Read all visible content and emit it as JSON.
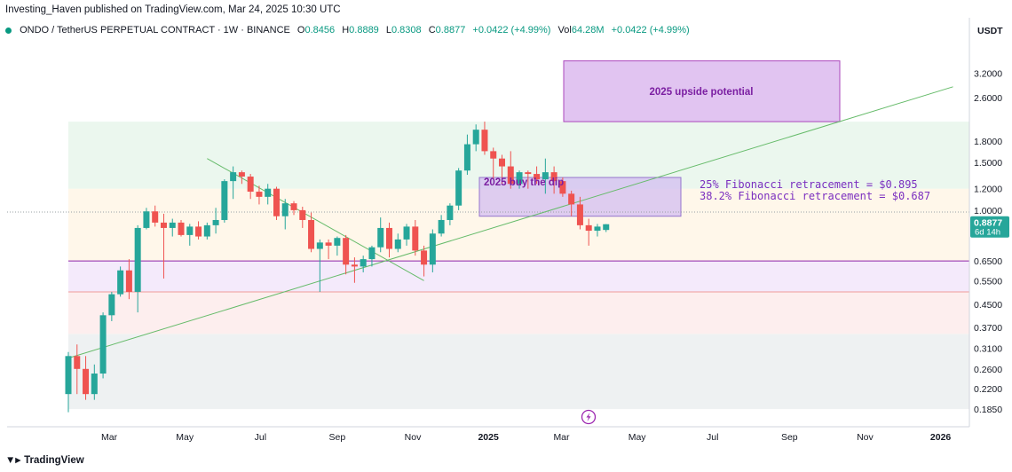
{
  "header": {
    "publisher": "Investing_Haven published on TradingView.com, Mar 24, 2025 10:30 UTC",
    "symbol": "ONDO / TetherUS PERPETUAL CONTRACT · 1W · BINANCE",
    "open_label": "O",
    "open": "0.8456",
    "high_label": "H",
    "high": "0.8889",
    "low_label": "L",
    "low": "0.8308",
    "close_label": "C",
    "close": "0.8877",
    "change": "+0.0422 (+4.99%)",
    "vol_label": "Vol",
    "vol": "64.28M",
    "vol_change": "+0.0422 (+4.99%)"
  },
  "footer": {
    "brand": "TradingView"
  },
  "colors": {
    "up": "#26a69a",
    "down": "#ef5350",
    "accent": "#7b2fbf",
    "trend": "#66bb6a"
  },
  "chart_data": {
    "type": "candlestick",
    "scale": "log",
    "y_axis_unit": "USDT",
    "y_ticks": [
      3.2,
      2.6,
      1.8,
      1.5,
      1.2,
      1.0,
      0.65,
      0.55,
      0.45,
      0.37,
      0.31,
      0.26,
      0.22,
      0.185
    ],
    "y_tick_labels": [
      "3.2000",
      "2.6000",
      "1.8000",
      "1.5000",
      "1.2000",
      "1.0000",
      "0.6500",
      "0.5500",
      "0.4500",
      "0.3700",
      "0.3100",
      "0.2600",
      "0.2200",
      "0.1850"
    ],
    "x_tick_labels": [
      "Mar",
      "May",
      "Jul",
      "Sep",
      "Nov",
      "2025",
      "Mar",
      "May",
      "Jul",
      "Sep",
      "Nov",
      "2026"
    ],
    "current_price": "0.8877",
    "countdown": "6d 14h",
    "candles": [
      [
        0.21,
        0.3,
        0.18,
        0.29
      ],
      [
        0.29,
        0.32,
        0.21,
        0.26
      ],
      [
        0.26,
        0.29,
        0.2,
        0.21
      ],
      [
        0.21,
        0.27,
        0.2,
        0.25
      ],
      [
        0.25,
        0.42,
        0.24,
        0.41
      ],
      [
        0.41,
        0.5,
        0.39,
        0.49
      ],
      [
        0.49,
        0.62,
        0.48,
        0.6
      ],
      [
        0.6,
        0.66,
        0.47,
        0.5
      ],
      [
        0.5,
        0.88,
        0.42,
        0.86
      ],
      [
        0.86,
        1.02,
        0.85,
        0.99
      ],
      [
        0.99,
        1.04,
        0.87,
        0.9
      ],
      [
        0.9,
        0.97,
        0.56,
        0.86
      ],
      [
        0.86,
        0.93,
        0.8,
        0.9
      ],
      [
        0.9,
        0.92,
        0.8,
        0.81
      ],
      [
        0.81,
        0.89,
        0.74,
        0.87
      ],
      [
        0.87,
        0.91,
        0.78,
        0.8
      ],
      [
        0.8,
        0.9,
        0.78,
        0.88
      ],
      [
        0.88,
        1.02,
        0.82,
        0.92
      ],
      [
        0.92,
        1.3,
        0.9,
        1.28
      ],
      [
        1.28,
        1.45,
        1.1,
        1.38
      ],
      [
        1.38,
        1.4,
        1.25,
        1.33
      ],
      [
        1.33,
        1.36,
        1.1,
        1.17
      ],
      [
        1.17,
        1.23,
        1.05,
        1.12
      ],
      [
        1.12,
        1.25,
        1.05,
        1.2
      ],
      [
        1.2,
        1.22,
        0.92,
        0.95
      ],
      [
        0.95,
        1.1,
        0.85,
        1.06
      ],
      [
        1.06,
        1.08,
        0.96,
        1.0
      ],
      [
        1.0,
        1.03,
        0.86,
        0.92
      ],
      [
        0.92,
        0.98,
        0.7,
        0.72
      ],
      [
        0.72,
        0.78,
        0.5,
        0.76
      ],
      [
        0.76,
        0.78,
        0.66,
        0.74
      ],
      [
        0.74,
        0.8,
        0.68,
        0.79
      ],
      [
        0.79,
        0.81,
        0.58,
        0.63
      ],
      [
        0.63,
        0.67,
        0.54,
        0.62
      ],
      [
        0.62,
        0.68,
        0.59,
        0.66
      ],
      [
        0.66,
        0.74,
        0.62,
        0.73
      ],
      [
        0.73,
        0.94,
        0.7,
        0.86
      ],
      [
        0.86,
        0.9,
        0.67,
        0.72
      ],
      [
        0.72,
        0.82,
        0.7,
        0.78
      ],
      [
        0.78,
        0.89,
        0.74,
        0.87
      ],
      [
        0.87,
        0.92,
        0.68,
        0.71
      ],
      [
        0.71,
        0.74,
        0.57,
        0.63
      ],
      [
        0.63,
        0.85,
        0.59,
        0.82
      ],
      [
        0.82,
        0.96,
        0.8,
        0.92
      ],
      [
        0.92,
        1.06,
        0.88,
        1.04
      ],
      [
        1.04,
        1.43,
        1.0,
        1.4
      ],
      [
        1.4,
        1.9,
        1.35,
        1.75
      ],
      [
        1.75,
        2.07,
        1.65,
        1.98
      ],
      [
        1.98,
        2.12,
        1.6,
        1.65
      ],
      [
        1.65,
        1.7,
        1.3,
        1.55
      ],
      [
        1.55,
        1.6,
        1.25,
        1.45
      ],
      [
        1.45,
        1.65,
        1.2,
        1.25
      ],
      [
        1.25,
        1.4,
        1.2,
        1.38
      ],
      [
        1.38,
        1.4,
        1.2,
        1.36
      ],
      [
        1.36,
        1.45,
        1.25,
        1.3
      ],
      [
        1.3,
        1.55,
        1.15,
        1.38
      ],
      [
        1.38,
        1.45,
        1.15,
        1.28
      ],
      [
        1.28,
        1.32,
        1.12,
        1.15
      ],
      [
        1.15,
        1.18,
        0.95,
        1.05
      ],
      [
        1.05,
        1.12,
        0.85,
        0.88
      ],
      [
        0.88,
        0.93,
        0.74,
        0.84
      ],
      [
        0.84,
        0.89,
        0.8,
        0.87
      ],
      [
        0.8456,
        0.8889,
        0.8308,
        0.8877
      ]
    ],
    "annotations": {
      "upside_box": "2025 upside potential",
      "buy_box": "2025 buy the dip",
      "fib_25": "25% Fibonacci retracement = $0.895",
      "fib_382": "38.2% Fibonacci retracement = $0.687"
    },
    "fib_bands": [
      0.185,
      0.35,
      0.5,
      0.65,
      1.2,
      2.12
    ],
    "horizontal_lines": [
      0.65,
      0.5
    ],
    "upside_zone": [
      2.12,
      3.55
    ],
    "buy_zone": [
      0.95,
      1.32
    ],
    "trendlines": [
      {
        "from": [
          "2024-01-28",
          0.285
        ],
        "to": [
          "2026-01-11",
          2.85
        ]
      },
      {
        "from": [
          "2024-05-19",
          1.55
        ],
        "to": [
          "2024-11-10",
          0.55
        ]
      }
    ]
  }
}
